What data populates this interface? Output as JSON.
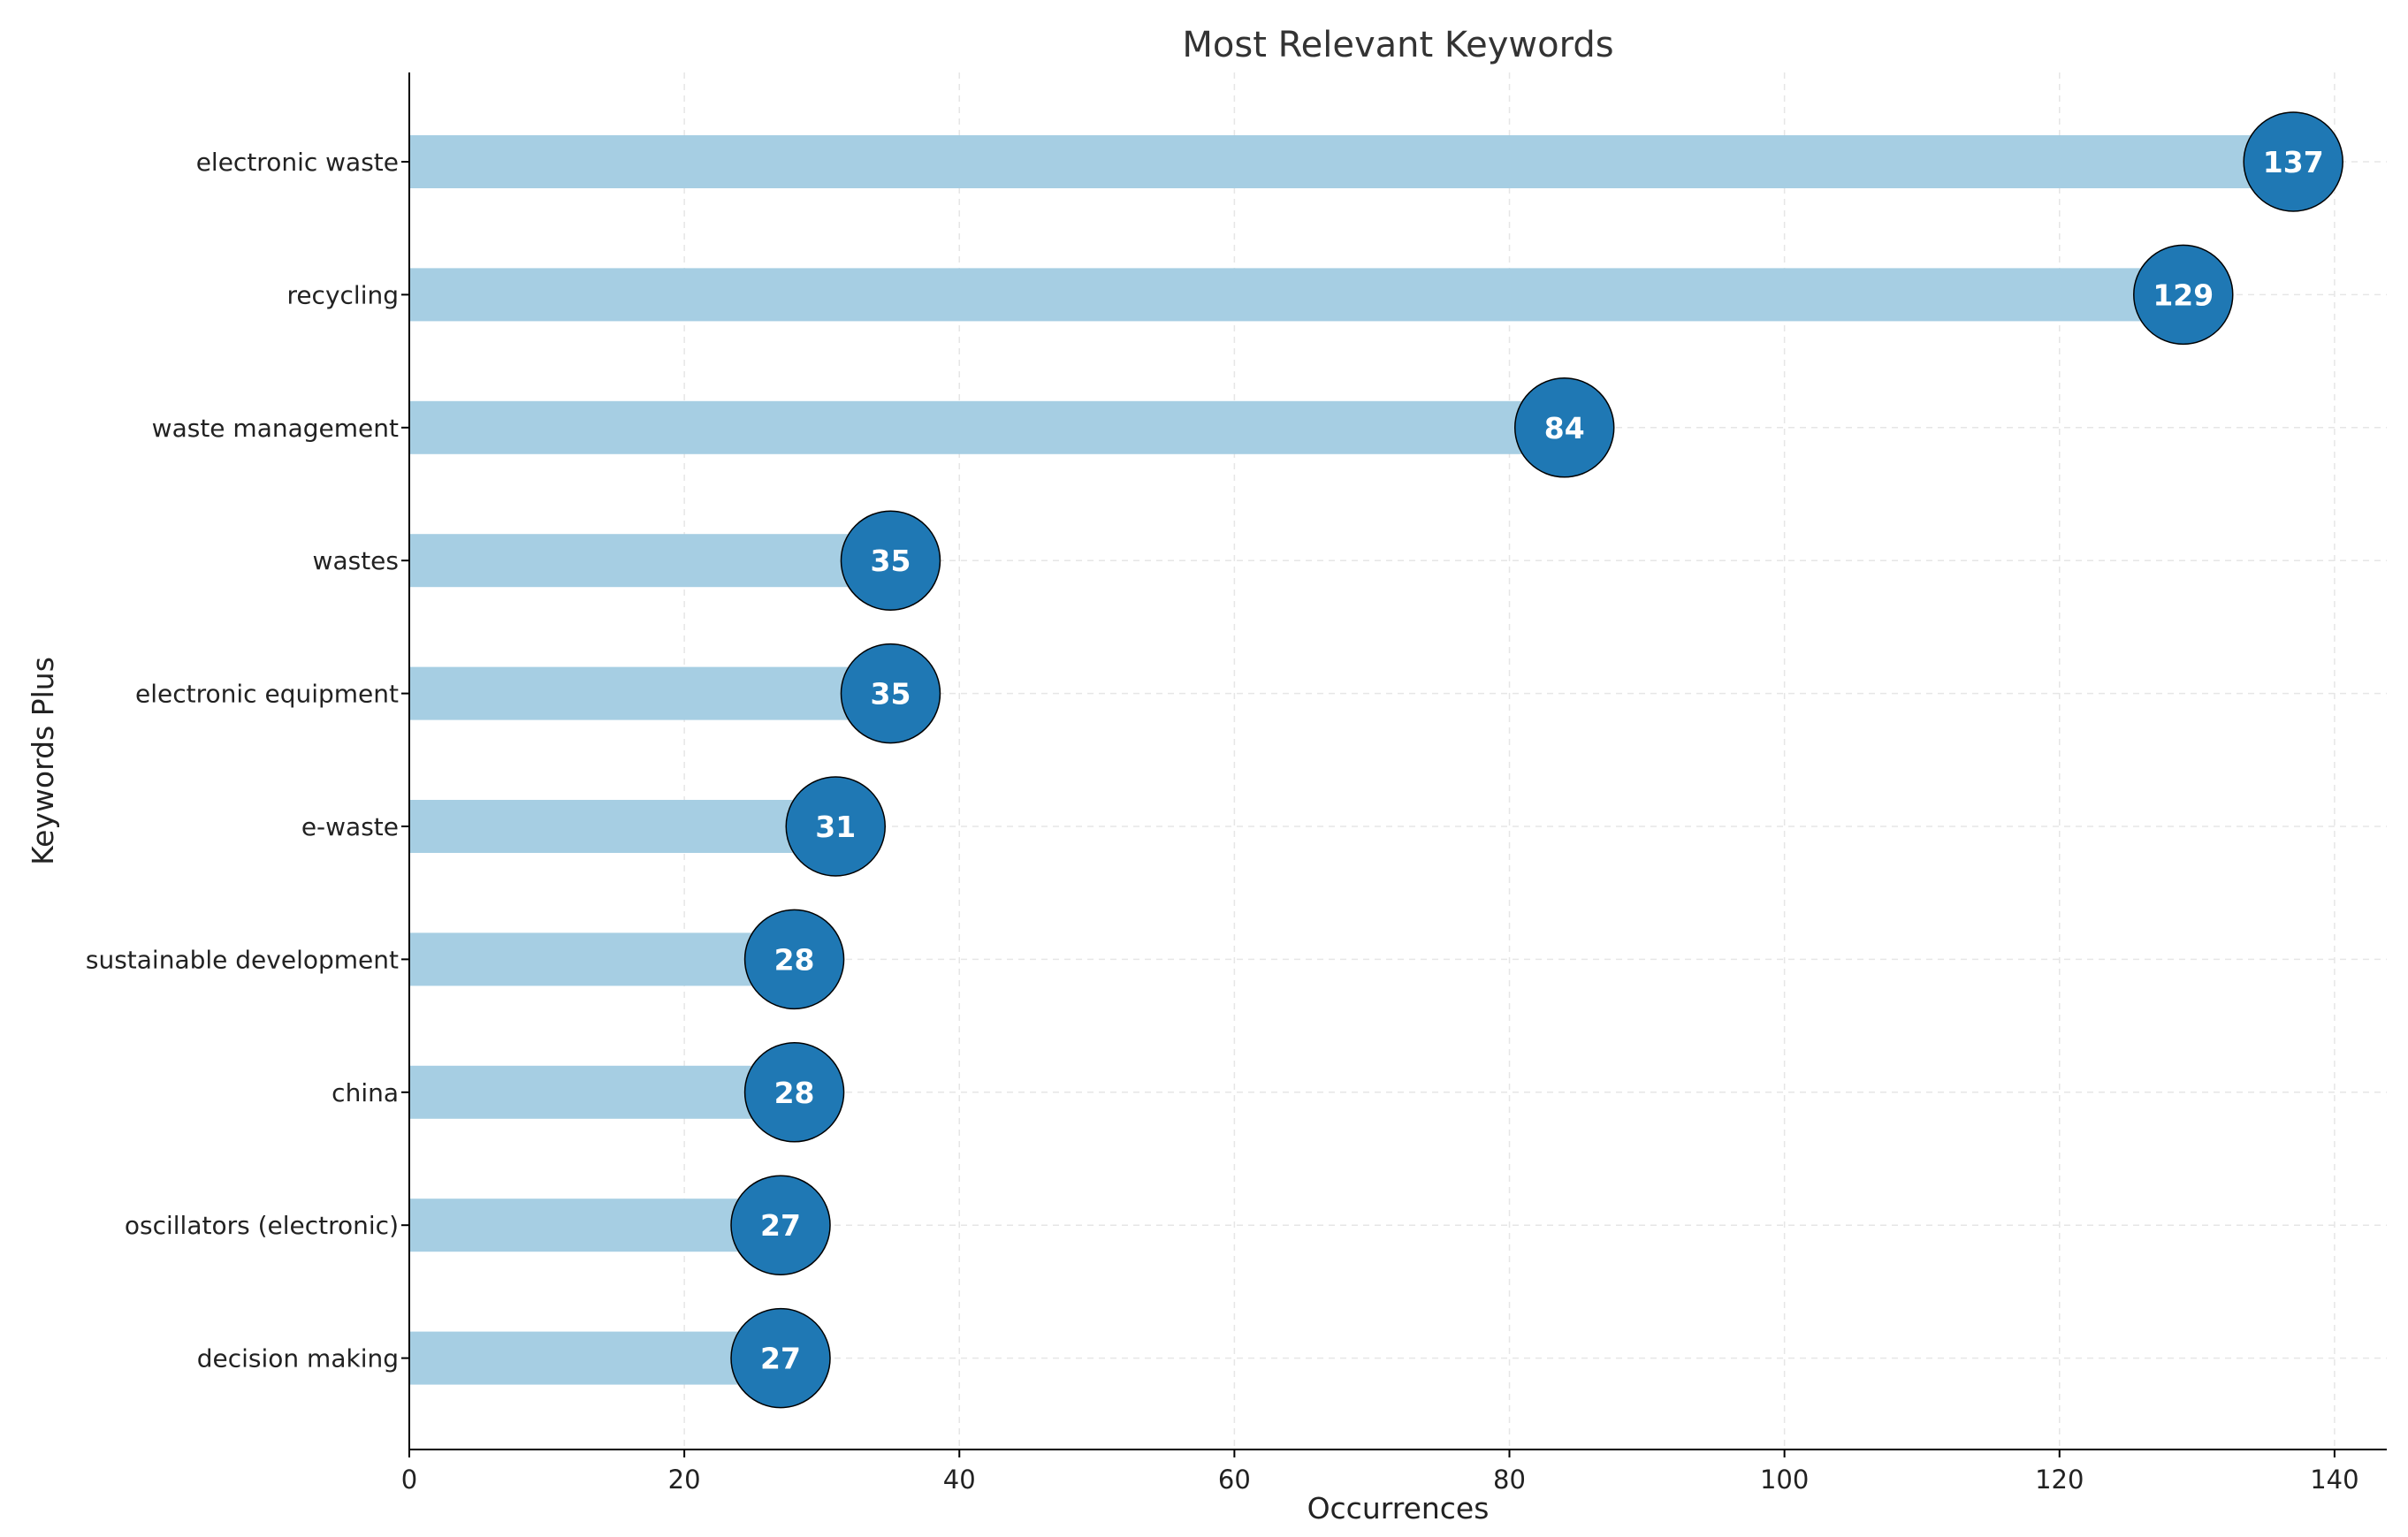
{
  "chart_data": {
    "type": "bar",
    "title": "Most Relevant Keywords",
    "xlabel": "Occurrences",
    "ylabel": "Keywords Plus",
    "categories": [
      "electronic waste",
      "recycling",
      "waste management",
      "wastes",
      "electronic equipment",
      "e-waste",
      "sustainable development",
      "china",
      "oscillators (electronic)",
      "decision making"
    ],
    "values": [
      137,
      129,
      84,
      35,
      35,
      31,
      28,
      28,
      27,
      27
    ],
    "xlim": [
      0,
      143.8
    ],
    "xticks": [
      0,
      20,
      40,
      60,
      80,
      100,
      120,
      140
    ],
    "orientation": "horizontal",
    "grid": true,
    "bar_color": "#a6cee3",
    "marker_color": "#1f78b4",
    "marker_edge_color": "#000000",
    "value_label_color": "#ffffff",
    "grid_color": "#e6e6e6"
  }
}
